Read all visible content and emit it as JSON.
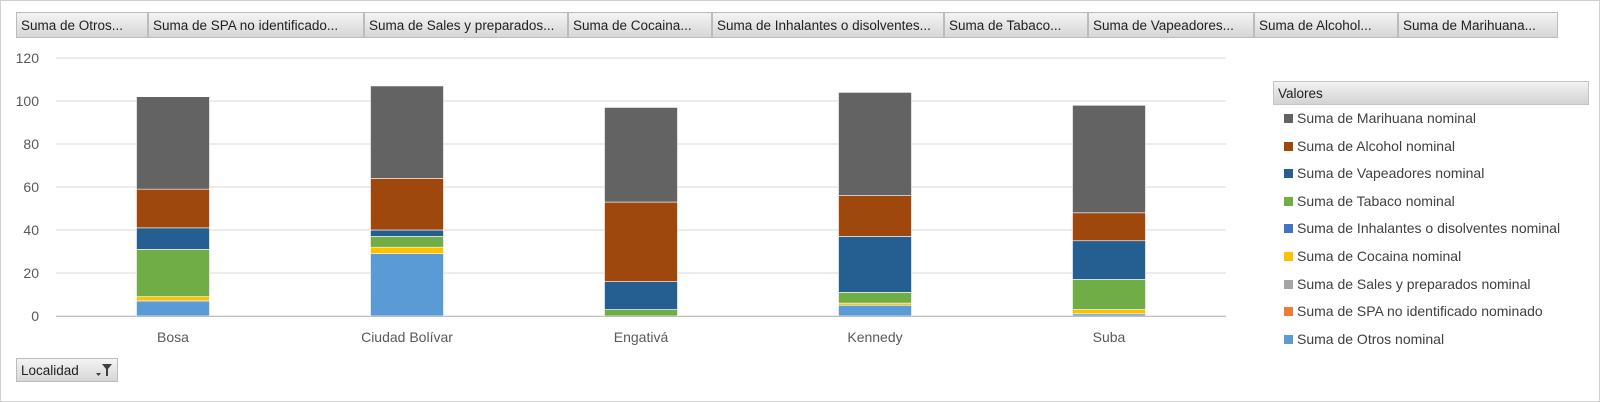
{
  "field_buttons": [
    "Suma de Otros...",
    "Suma de SPA no identificado...",
    "Suma de Sales y preparados...",
    "Suma de Cocaina...",
    "Suma de Inhalantes o disolventes...",
    "Suma de Tabaco...",
    "Suma de Vapeadores...",
    "Suma de Alcohol...",
    "Suma de Marihuana..."
  ],
  "axis_field": {
    "label": "Localidad",
    "icon": "filter-icon"
  },
  "legend": {
    "title": "Valores"
  },
  "chart_data": {
    "type": "bar",
    "stacked": true,
    "categories": [
      "Bosa",
      "Ciudad Bolívar",
      "Engativá",
      "Kennedy",
      "Suba"
    ],
    "ylim": [
      0,
      120
    ],
    "yticks": [
      0,
      20,
      40,
      60,
      80,
      100,
      120
    ],
    "grid": true,
    "legend_position": "right",
    "series": [
      {
        "name": "Suma de Otros nominal",
        "color": "#5b9bd5",
        "values": [
          7,
          29,
          0,
          5,
          1
        ]
      },
      {
        "name": "Suma de SPA no identificado nominado",
        "color": "#ed7d31",
        "values": [
          0,
          0,
          0,
          0,
          0
        ]
      },
      {
        "name": "Suma de Sales y preparados nominal",
        "color": "#a5a5a5",
        "values": [
          0,
          0,
          0,
          0,
          0
        ]
      },
      {
        "name": "Suma de Cocaina nominal",
        "color": "#ffc000",
        "values": [
          2,
          3,
          0,
          1,
          2
        ]
      },
      {
        "name": "Suma de Inhalantes o disolventes nominal",
        "color": "#4472c4",
        "values": [
          0,
          0,
          0,
          0,
          0
        ]
      },
      {
        "name": "Suma de Tabaco nominal",
        "color": "#70ad47",
        "values": [
          22,
          5,
          3,
          5,
          14
        ]
      },
      {
        "name": "Suma de Vapeadores nominal",
        "color": "#255e91",
        "values": [
          10,
          3,
          13,
          26,
          18
        ]
      },
      {
        "name": "Suma de Alcohol nominal",
        "color": "#9e480e",
        "values": [
          18,
          24,
          37,
          19,
          13
        ]
      },
      {
        "name": "Suma de Marihuana nominal",
        "color": "#636363",
        "values": [
          43,
          43,
          44,
          48,
          50
        ]
      }
    ]
  }
}
